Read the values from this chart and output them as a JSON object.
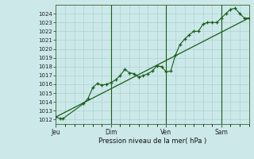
{
  "bg_color": "#cce8e8",
  "grid_color": "#aad4d4",
  "line_color": "#1a5c1a",
  "marker_color": "#1a5c1a",
  "axis_label": "Pression niveau de la mer( hPa )",
  "ylim": [
    1011.5,
    1025.0
  ],
  "yticks": [
    1012,
    1013,
    1014,
    1015,
    1016,
    1017,
    1018,
    1019,
    1020,
    1021,
    1022,
    1023,
    1024
  ],
  "day_labels": [
    "Jeu",
    "Dim",
    "Ven",
    "Sam"
  ],
  "day_positions": [
    0,
    48,
    96,
    144
  ],
  "series1_x": [
    0,
    4,
    6,
    24,
    28,
    32,
    36,
    40,
    44,
    48,
    52,
    56,
    60,
    64,
    68,
    72,
    76,
    80,
    84,
    88,
    92,
    96,
    100,
    104,
    108,
    112,
    116,
    120,
    124,
    128,
    132,
    136,
    140,
    144,
    148,
    152,
    156,
    160,
    164,
    168
  ],
  "series1_y": [
    1012.3,
    1012.1,
    1012.1,
    1013.8,
    1014.4,
    1015.6,
    1016.1,
    1015.9,
    1016.0,
    1016.2,
    1016.5,
    1017.0,
    1017.7,
    1017.3,
    1017.2,
    1016.8,
    1017.0,
    1017.2,
    1017.5,
    1018.1,
    1018.0,
    1017.4,
    1017.5,
    1019.3,
    1020.5,
    1021.1,
    1021.6,
    1022.0,
    1022.0,
    1022.8,
    1023.0,
    1023.0,
    1023.0,
    1023.5,
    1024.0,
    1024.5,
    1024.6,
    1024.0,
    1023.5,
    1023.5
  ],
  "series2_x": [
    0,
    168
  ],
  "series2_y": [
    1012.3,
    1023.5
  ],
  "vline_positions": [
    48,
    96,
    144
  ],
  "xlim": [
    0,
    168
  ],
  "figsize": [
    3.2,
    2.0
  ],
  "dpi": 100
}
